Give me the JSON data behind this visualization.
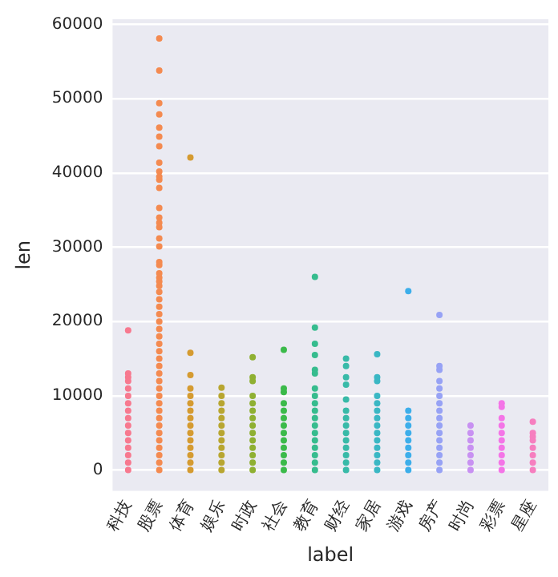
{
  "chart_data": {
    "type": "scatter",
    "xlabel": "label",
    "ylabel": "len",
    "categories": [
      "科技",
      "股票",
      "体育",
      "娱乐",
      "时政",
      "社会",
      "教育",
      "财经",
      "家居",
      "游戏",
      "房产",
      "时尚",
      "彩票",
      "星座"
    ],
    "ylim": [
      -2800,
      60700
    ],
    "yticks": [
      0,
      10000,
      20000,
      30000,
      40000,
      50000,
      60000
    ],
    "grid": "y",
    "legend": false,
    "marker": "circle",
    "series": [
      {
        "color": "#f7798f",
        "x": [
          "科技",
          "科技",
          "科技",
          "科技",
          "科技",
          "科技",
          "科技",
          "科技",
          "科技",
          "科技",
          "科技",
          "科技",
          "科技",
          "科技",
          "科技",
          "科技"
        ],
        "values": [
          0,
          1000,
          2000,
          3000,
          4000,
          5000,
          6000,
          7000,
          8000,
          9000,
          10000,
          11000,
          12000,
          12500,
          13000,
          18800
        ]
      },
      {
        "color": "#f48a50",
        "x": [
          "股票",
          "股票",
          "股票",
          "股票",
          "股票",
          "股票",
          "股票",
          "股票",
          "股票",
          "股票",
          "股票",
          "股票",
          "股票",
          "股票",
          "股票",
          "股票",
          "股票",
          "股票",
          "股票",
          "股票",
          "股票",
          "股票",
          "股票",
          "股票",
          "股票",
          "股票",
          "股票",
          "股票",
          "股票",
          "股票",
          "股票",
          "股票",
          "股票",
          "股票",
          "股票",
          "股票",
          "股票",
          "股票",
          "股票",
          "股票",
          "股票",
          "股票",
          "股票",
          "股票",
          "股票",
          "股票",
          "股票",
          "股票",
          "股票"
        ],
        "values": [
          0,
          1000,
          2000,
          3000,
          4000,
          5000,
          6000,
          7000,
          8000,
          9000,
          10000,
          11000,
          12000,
          13000,
          14000,
          15000,
          16000,
          17000,
          18000,
          19000,
          20000,
          21000,
          22000,
          23000,
          24000,
          24800,
          25400,
          25900,
          26500,
          27600,
          28000,
          30100,
          31200,
          32700,
          33300,
          34000,
          35300,
          38000,
          39100,
          39500,
          40200,
          41400,
          43600,
          44900,
          46100,
          47900,
          49400,
          53800,
          58100
        ]
      },
      {
        "color": "#d59b31",
        "x": [
          "体育",
          "体育",
          "体育",
          "体育",
          "体育",
          "体育",
          "体育",
          "体育",
          "体育",
          "体育",
          "体育",
          "体育",
          "体育",
          "体育",
          "体育"
        ],
        "values": [
          0,
          1000,
          2000,
          3000,
          4000,
          5000,
          6000,
          7000,
          8000,
          9000,
          10000,
          11000,
          12800,
          15800,
          42100
        ]
      },
      {
        "color": "#b8a631",
        "x": [
          "娱乐",
          "娱乐",
          "娱乐",
          "娱乐",
          "娱乐",
          "娱乐",
          "娱乐",
          "娱乐",
          "娱乐",
          "娱乐",
          "娱乐",
          "娱乐"
        ],
        "values": [
          0,
          1000,
          2000,
          3000,
          4000,
          5000,
          6000,
          7000,
          8000,
          9000,
          10000,
          11100
        ]
      },
      {
        "color": "#8fb032",
        "x": [
          "时政",
          "时政",
          "时政",
          "时政",
          "时政",
          "时政",
          "时政",
          "时政",
          "时政",
          "时政",
          "时政",
          "时政",
          "时政",
          "时政"
        ],
        "values": [
          0,
          1000,
          2000,
          3000,
          4000,
          5000,
          6000,
          7000,
          8000,
          9000,
          10000,
          12000,
          12500,
          15200
        ]
      },
      {
        "color": "#3bba4a",
        "x": [
          "社会",
          "社会",
          "社会",
          "社会",
          "社会",
          "社会",
          "社会",
          "社会",
          "社会",
          "社会",
          "社会",
          "社会",
          "社会"
        ],
        "values": [
          0,
          1000,
          2000,
          3000,
          4000,
          5000,
          6000,
          7000,
          8000,
          9000,
          10500,
          11000,
          16200
        ]
      },
      {
        "color": "#36bc8e",
        "x": [
          "教育",
          "教育",
          "教育",
          "教育",
          "教育",
          "教育",
          "教育",
          "教育",
          "教育",
          "教育",
          "教育",
          "教育",
          "教育",
          "教育",
          "教育",
          "教育",
          "教育",
          "教育"
        ],
        "values": [
          0,
          1000,
          2000,
          3000,
          4000,
          5000,
          6000,
          7000,
          8000,
          9000,
          10000,
          11000,
          13000,
          13500,
          15500,
          17000,
          19200,
          26000
        ]
      },
      {
        "color": "#38baa8",
        "x": [
          "财经",
          "财经",
          "财经",
          "财经",
          "财经",
          "财经",
          "财经",
          "财经",
          "财经",
          "财经",
          "财经",
          "财经",
          "财经",
          "财经"
        ],
        "values": [
          0,
          1000,
          2000,
          3000,
          4000,
          5000,
          6000,
          7000,
          8000,
          9500,
          11500,
          12500,
          14000,
          15000
        ]
      },
      {
        "color": "#3ab7c4",
        "x": [
          "家居",
          "家居",
          "家居",
          "家居",
          "家居",
          "家居",
          "家居",
          "家居",
          "家居",
          "家居",
          "家居",
          "家居",
          "家居",
          "家居"
        ],
        "values": [
          0,
          1000,
          2000,
          3000,
          4000,
          5000,
          6000,
          7000,
          8000,
          9000,
          10000,
          12000,
          12500,
          15600
        ]
      },
      {
        "color": "#3daeea",
        "x": [
          "游戏",
          "游戏",
          "游戏",
          "游戏",
          "游戏",
          "游戏",
          "游戏",
          "游戏",
          "游戏",
          "游戏"
        ],
        "values": [
          0,
          1000,
          2000,
          3000,
          4000,
          5000,
          6000,
          7000,
          8000,
          24100
        ]
      },
      {
        "color": "#97a2f5",
        "x": [
          "房产",
          "房产",
          "房产",
          "房产",
          "房产",
          "房产",
          "房产",
          "房产",
          "房产",
          "房产",
          "房产",
          "房产",
          "房产",
          "房产",
          "房产",
          "房产"
        ],
        "values": [
          0,
          1000,
          2000,
          3000,
          4000,
          5000,
          6000,
          7000,
          8000,
          9000,
          10000,
          11000,
          12000,
          13500,
          14000,
          20900
        ]
      },
      {
        "color": "#c891f2",
        "x": [
          "时尚",
          "时尚",
          "时尚",
          "时尚",
          "时尚",
          "时尚",
          "时尚"
        ],
        "values": [
          0,
          1000,
          2000,
          3000,
          4000,
          5000,
          6000
        ]
      },
      {
        "color": "#f475e7",
        "x": [
          "彩票",
          "彩票",
          "彩票",
          "彩票",
          "彩票",
          "彩票",
          "彩票",
          "彩票",
          "彩票",
          "彩票"
        ],
        "values": [
          0,
          1000,
          2000,
          3000,
          4000,
          5000,
          6000,
          7000,
          8500,
          9000
        ]
      },
      {
        "color": "#f67ebf",
        "x": [
          "星座",
          "星座",
          "星座",
          "星座",
          "星座",
          "星座",
          "星座",
          "星座"
        ],
        "values": [
          0,
          1000,
          2000,
          3000,
          4000,
          4500,
          5000,
          6500
        ]
      }
    ]
  }
}
